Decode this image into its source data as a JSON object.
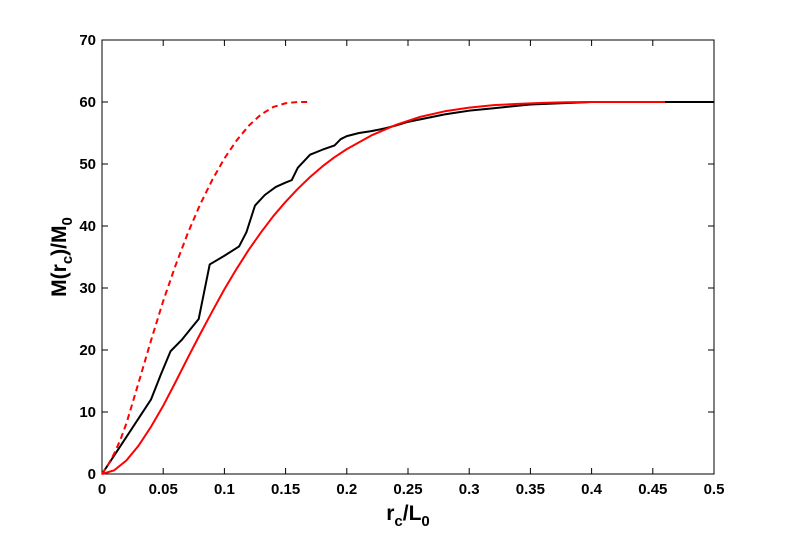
{
  "chart_data": {
    "type": "line",
    "title": "",
    "xlabel": "r_c/L_0",
    "ylabel": "M(r_c)/M_0",
    "xlabel_parts": {
      "base": "r",
      "sub": "c",
      "sep": "/",
      "base2": "L",
      "sub2": "0"
    },
    "ylabel_parts": {
      "pre": "M(r",
      "sub": "c",
      "post": ")/M",
      "sub2": "0"
    },
    "xlim": [
      0,
      0.5
    ],
    "ylim": [
      0,
      70
    ],
    "xticks": [
      0,
      0.05,
      0.1,
      0.15,
      0.2,
      0.25,
      0.3,
      0.35,
      0.4,
      0.45,
      0.5
    ],
    "yticks": [
      0,
      10,
      20,
      30,
      40,
      50,
      60,
      70
    ],
    "xtick_labels": [
      "0",
      "0.05",
      "0.1",
      "0.15",
      "0.2",
      "0.25",
      "0.3",
      "0.35",
      "0.4",
      "0.45",
      "0.5"
    ],
    "ytick_labels": [
      "0",
      "10",
      "20",
      "30",
      "40",
      "50",
      "60",
      "70"
    ],
    "grid": false,
    "legend": "none",
    "series": [
      {
        "style": "solid",
        "color": "#000000",
        "x": [
          0,
          0.01,
          0.02,
          0.03,
          0.04,
          0.048,
          0.056,
          0.065,
          0.072,
          0.079,
          0.088,
          0.1,
          0.112,
          0.118,
          0.125,
          0.133,
          0.142,
          0.15,
          0.155,
          0.16,
          0.17,
          0.18,
          0.19,
          0.195,
          0.2,
          0.21,
          0.22,
          0.23,
          0.24,
          0.25,
          0.26,
          0.27,
          0.28,
          0.29,
          0.3,
          0.32,
          0.35,
          0.4,
          0.45,
          0.5
        ],
        "y": [
          0,
          3,
          6,
          9,
          12,
          16,
          19.8,
          21.6,
          23.3,
          25,
          33.8,
          35.2,
          36.7,
          39,
          43.3,
          45,
          46.3,
          47,
          47.4,
          49.4,
          51.5,
          52.3,
          53,
          54,
          54.5,
          55,
          55.3,
          55.7,
          56.2,
          56.8,
          57.2,
          57.6,
          58,
          58.3,
          58.6,
          59,
          59.6,
          60,
          60,
          60
        ]
      },
      {
        "style": "solid",
        "color": "#ff0000",
        "x": [
          0,
          0.01,
          0.02,
          0.03,
          0.04,
          0.05,
          0.06,
          0.07,
          0.08,
          0.09,
          0.1,
          0.11,
          0.12,
          0.13,
          0.14,
          0.15,
          0.16,
          0.17,
          0.18,
          0.19,
          0.2,
          0.22,
          0.24,
          0.26,
          0.28,
          0.3,
          0.32,
          0.34,
          0.36,
          0.38,
          0.4,
          0.42,
          0.44,
          0.46
        ],
        "y": [
          0,
          0.6,
          2.2,
          4.6,
          7.6,
          11,
          14.8,
          18.7,
          22.5,
          26.2,
          29.8,
          33.1,
          36.2,
          39,
          41.6,
          43.9,
          46,
          47.9,
          49.6,
          51.1,
          52.4,
          54.6,
          56.3,
          57.6,
          58.5,
          59.1,
          59.5,
          59.7,
          59.85,
          59.95,
          60,
          60,
          60,
          60
        ]
      },
      {
        "style": "dashed",
        "color": "#ff0000",
        "x": [
          0,
          0.005,
          0.01,
          0.015,
          0.02,
          0.03,
          0.04,
          0.05,
          0.06,
          0.07,
          0.08,
          0.09,
          0.1,
          0.11,
          0.12,
          0.13,
          0.14,
          0.15,
          0.16,
          0.17
        ],
        "y": [
          0,
          1.5,
          3.3,
          5.5,
          8.2,
          14.8,
          21.5,
          27.9,
          33.6,
          38.8,
          43.4,
          47.4,
          50.9,
          53.8,
          56.2,
          58,
          59.2,
          59.8,
          60,
          60
        ]
      }
    ]
  }
}
